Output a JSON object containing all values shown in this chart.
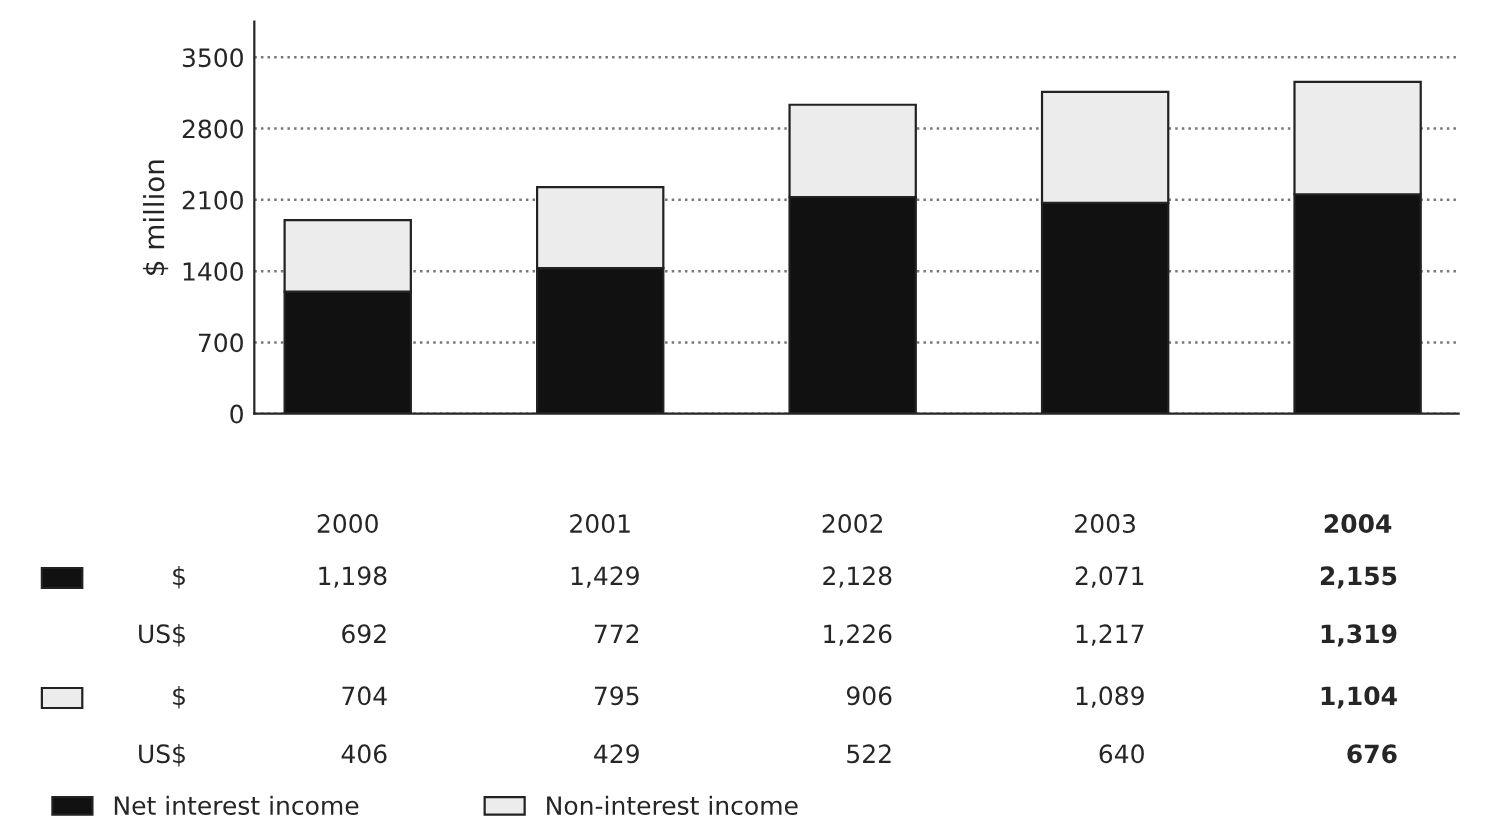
{
  "chart_data": {
    "type": "bar",
    "stacked": true,
    "ylabel": "$ million",
    "categories": [
      "2000",
      "2001",
      "2002",
      "2003",
      "2004"
    ],
    "series": [
      {
        "name": "Net interest income",
        "color": "#111111",
        "values": [
          1198,
          1429,
          2128,
          2071,
          2155
        ],
        "value_labels": [
          "1,198",
          "1,429",
          "2,128",
          "2,071",
          "2,155"
        ]
      },
      {
        "name": "Non-interest income",
        "color": "#ececec",
        "values": [
          704,
          795,
          906,
          1089,
          1104
        ],
        "value_labels": [
          "704",
          "795",
          "906",
          "1,089",
          "1,104"
        ]
      }
    ],
    "annotations": [
      "$",
      "US$",
      "692",
      "772",
      "1,226",
      "1,217",
      "1,319",
      "$",
      "US$",
      "406",
      "429",
      "522",
      "640",
      "676"
    ],
    "ylim": [
      0,
      3850
    ],
    "yticks": [
      0,
      700,
      1400,
      2100,
      2800,
      3500
    ],
    "grid": "y",
    "legend": "bottom left"
  }
}
